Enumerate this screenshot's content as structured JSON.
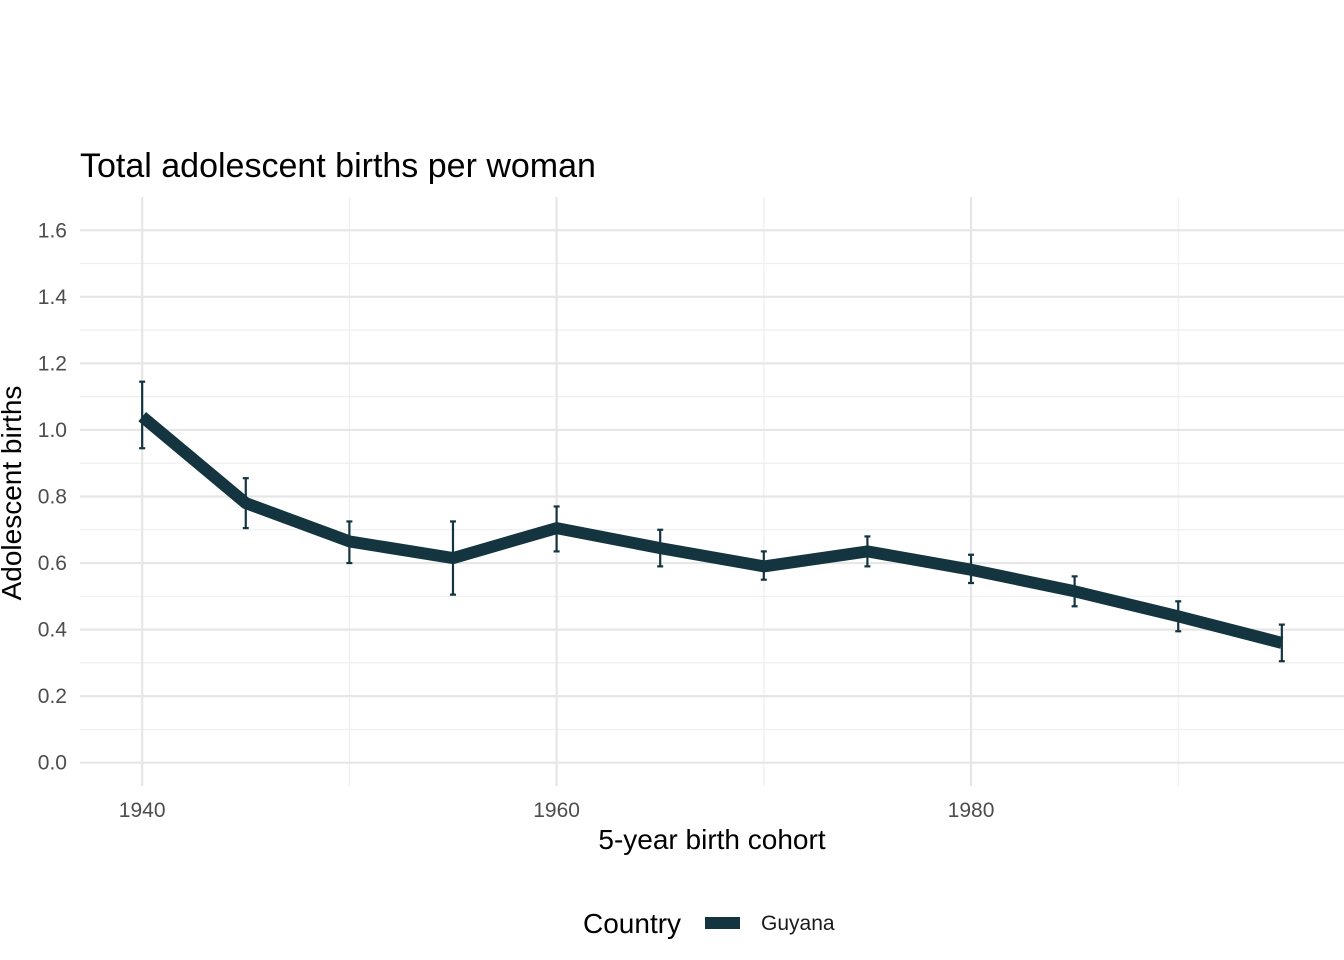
{
  "chart_data": {
    "type": "line",
    "title": "Total adolescent births per woman",
    "xlabel": "5-year birth cohort",
    "ylabel": "Adolescent births",
    "xlim": [
      1937,
      1998
    ],
    "ylim": [
      -0.07,
      1.7
    ],
    "x_ticks": [
      1940,
      1960,
      1980
    ],
    "x_minor_ticks": [
      1950,
      1970,
      1990
    ],
    "y_ticks": [
      0.0,
      0.2,
      0.4,
      0.6,
      0.8,
      1.0,
      1.2,
      1.4,
      1.6
    ],
    "y_tick_labels": [
      "0.0",
      "0.2",
      "0.4",
      "0.6",
      "0.8",
      "1.0",
      "1.2",
      "1.4",
      "1.6"
    ],
    "grid": true,
    "legend": {
      "title": "Country",
      "position": "bottom"
    },
    "x": [
      1940,
      1945,
      1950,
      1955,
      1960,
      1965,
      1970,
      1975,
      1980,
      1985,
      1990,
      1995
    ],
    "series": [
      {
        "name": "Guyana",
        "color": "#14353f",
        "values": [
          1.04,
          0.78,
          0.665,
          0.615,
          0.705,
          0.645,
          0.59,
          0.635,
          0.58,
          0.515,
          0.44,
          0.36
        ],
        "error_low": [
          0.945,
          0.705,
          0.6,
          0.505,
          0.635,
          0.59,
          0.55,
          0.59,
          0.54,
          0.47,
          0.395,
          0.305
        ],
        "error_high": [
          1.145,
          0.855,
          0.725,
          0.725,
          0.77,
          0.7,
          0.635,
          0.68,
          0.625,
          0.56,
          0.485,
          0.415
        ]
      }
    ]
  }
}
